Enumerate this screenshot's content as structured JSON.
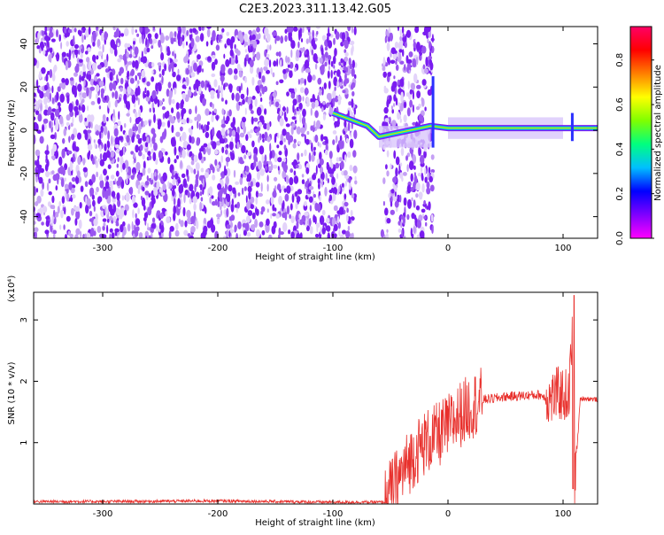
{
  "title": "C2E3.2023.311.13.42.G05",
  "chart_data": [
    {
      "type": "heatmap",
      "xlabel": "Height of straight line (km)",
      "ylabel": "Frequency (Hz)",
      "xlim": [
        -360,
        130
      ],
      "ylim": [
        -50,
        48
      ],
      "xticks": [
        -300,
        -200,
        -100,
        0,
        100
      ],
      "yticks": [
        -40,
        -20,
        0,
        20,
        40
      ],
      "colorbar": {
        "label": "Normalized spectral amplitude",
        "range": [
          0,
          0.95
        ],
        "ticks": [
          "0.0",
          "0.2",
          "0.4",
          "0.6",
          "0.8"
        ],
        "colormap": [
          "#ff00ff",
          "#7f00ff",
          "#0000ff",
          "#00bfff",
          "#00ff7f",
          "#7fff00",
          "#ffff00",
          "#ff7f00",
          "#ff0000",
          "#ff0066"
        ]
      },
      "noise_regions": [
        [
          -360,
          -80
        ],
        [
          -57,
          -13
        ]
      ],
      "signal_track": [
        {
          "x": -100,
          "y": 8
        },
        {
          "x": -90,
          "y": 6
        },
        {
          "x": -80,
          "y": 4
        },
        {
          "x": -70,
          "y": 2
        },
        {
          "x": -60,
          "y": -3
        },
        {
          "x": -15,
          "y": 2
        },
        {
          "x": 0,
          "y": 1
        },
        {
          "x": 50,
          "y": 1
        },
        {
          "x": 100,
          "y": 1
        },
        {
          "x": 130,
          "y": 1
        }
      ],
      "grid": false
    },
    {
      "type": "line",
      "xlabel": "Height of straight line (km)",
      "ylabel": "SNR (10 * v/v)",
      "yscale_label": "(x10⁴)",
      "xlim": [
        -360,
        130
      ],
      "ylim": [
        0,
        3.45
      ],
      "xticks": [
        -300,
        -200,
        -100,
        0,
        100
      ],
      "yticks": [
        1,
        2,
        3
      ],
      "series": [
        {
          "color": "#e8302c",
          "x": [
            -360,
            -300,
            -200,
            -100,
            -55,
            -50,
            -40,
            -30,
            -20,
            -10,
            0,
            10,
            20,
            30,
            40,
            50,
            60,
            70,
            80,
            88,
            95,
            100,
            105,
            108,
            110,
            115,
            120,
            130
          ],
          "y": [
            0.04,
            0.04,
            0.05,
            0.03,
            0.03,
            0.2,
            0.5,
            0.8,
            1.0,
            1.1,
            1.25,
            1.45,
            1.6,
            1.7,
            1.72,
            1.75,
            1.76,
            1.77,
            1.78,
            1.7,
            1.8,
            1.78,
            1.75,
            2.7,
            0.3,
            1.72,
            1.72,
            1.7
          ]
        }
      ],
      "grid": false
    }
  ]
}
